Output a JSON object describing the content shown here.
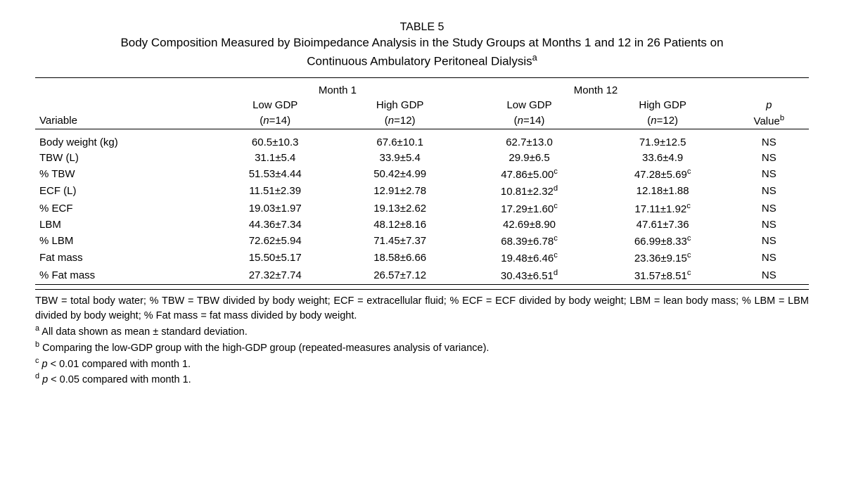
{
  "table_number": "TABLE 5",
  "title_line1": "Body Composition Measured by Bioimpedance Analysis in the Study Groups at Months 1 and 12 in 26 Patients on",
  "title_line2": "Continuous Ambulatory Peritoneal Dialysis",
  "title_sup": "a",
  "headers": {
    "variable": "Variable",
    "month1": "Month 1",
    "month12": "Month 12",
    "low_gdp": "Low GDP",
    "high_gdp": "High GDP",
    "n14": "n",
    "n14_val": "=14)",
    "n12": "n",
    "n12_val": "=12)",
    "pvalue_p": "p",
    "pvalue_label": "Value",
    "pvalue_sup": "b"
  },
  "rows": [
    {
      "var": "Body weight (kg)",
      "m1l": "60.5±10.3",
      "m1h": "67.6±10.1",
      "m12l": "62.7±13.0",
      "m12h": "71.9±12.5",
      "p": "NS",
      "s12l": "",
      "s12h": ""
    },
    {
      "var": "TBW (L)",
      "m1l": "31.1±5.4",
      "m1h": "33.9±5.4",
      "m12l": "29.9±6.5",
      "m12h": "33.6±4.9",
      "p": "NS",
      "s12l": "",
      "s12h": ""
    },
    {
      "var": "% TBW",
      "m1l": "51.53±4.44",
      "m1h": "50.42±4.99",
      "m12l": "47.86±5.00",
      "m12h": "47.28±5.69",
      "p": "NS",
      "s12l": "c",
      "s12h": "c"
    },
    {
      "var": "ECF (L)",
      "m1l": "11.51±2.39",
      "m1h": "12.91±2.78",
      "m12l": "10.81±2.32",
      "m12h": "12.18±1.88",
      "p": "NS",
      "s12l": "d",
      "s12h": ""
    },
    {
      "var": "% ECF",
      "m1l": "19.03±1.97",
      "m1h": "19.13±2.62",
      "m12l": "17.29±1.60",
      "m12h": "17.11±1.92",
      "p": "NS",
      "s12l": "c",
      "s12h": "c"
    },
    {
      "var": "LBM",
      "m1l": "44.36±7.34",
      "m1h": "48.12±8.16",
      "m12l": "42.69±8.90",
      "m12h": "47.61±7.36",
      "p": "NS",
      "s12l": "",
      "s12h": ""
    },
    {
      "var": "% LBM",
      "m1l": "72.62±5.94",
      "m1h": "71.45±7.37",
      "m12l": "68.39±6.78",
      "m12h": "66.99±8.33",
      "p": "NS",
      "s12l": "c",
      "s12h": "c"
    },
    {
      "var": "Fat mass",
      "m1l": "15.50±5.17",
      "m1h": "18.58±6.66",
      "m12l": "19.48±6.46",
      "m12h": "23.36±9.15",
      "p": "NS",
      "s12l": "c",
      "s12h": "c"
    },
    {
      "var": "% Fat mass",
      "m1l": "27.32±7.74",
      "m1h": "26.57±7.12",
      "m12l": "30.43±6.51",
      "m12h": "31.57±8.51",
      "p": "NS",
      "s12l": "d",
      "s12h": "c"
    }
  ],
  "footnotes": {
    "abbrev": "TBW = total body water; % TBW = TBW divided by body weight; ECF = extracellular fluid; % ECF = ECF divided by body weight; LBM = lean body mass; % LBM = LBM divided by body weight; % Fat mass = fat mass divided by body weight.",
    "a": " All data shown as mean ± standard deviation.",
    "b": " Comparing the low-GDP group with the high-GDP group (repeated-measures analysis of variance).",
    "c_pre": " ",
    "c_p": "p",
    "c_post": " < 0.01 compared with month 1.",
    "d_pre": " ",
    "d_p": "p",
    "d_post": " < 0.05 compared with month 1."
  },
  "sup_labels": {
    "a": "a",
    "b": "b",
    "c": "c",
    "d": "d"
  }
}
